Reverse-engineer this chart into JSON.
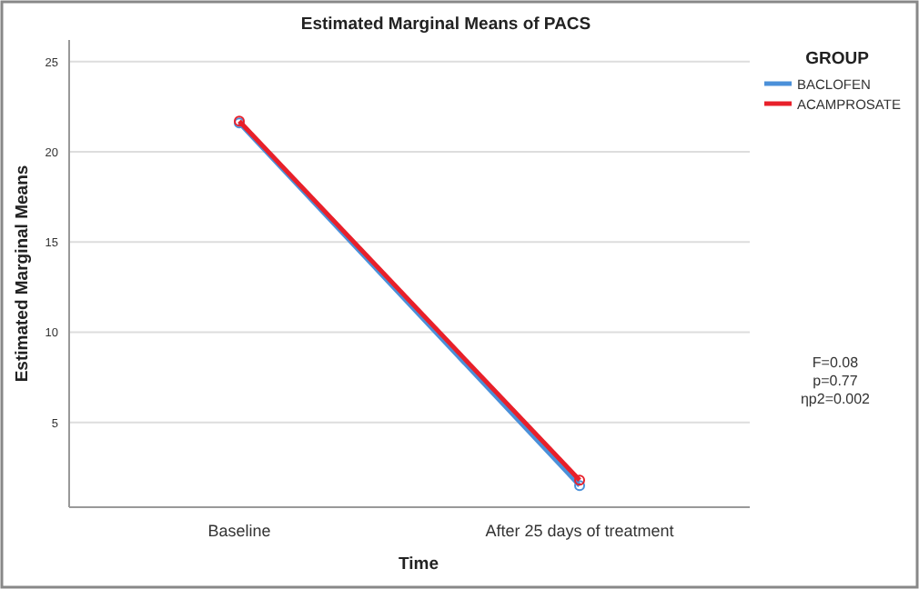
{
  "chart_data": {
    "type": "line",
    "title": "Estimated Marginal Means of PACS",
    "xlabel": "Time",
    "ylabel": "Estimated Marginal Means",
    "legend_title": "GROUP",
    "categories": [
      "Baseline",
      "After 25 days of treatment"
    ],
    "series": [
      {
        "name": "BACLOFEN",
        "color": "#4a90d9",
        "values": [
          21.6,
          1.5
        ]
      },
      {
        "name": "ACAMPROSATE",
        "color": "#e8202a",
        "values": [
          21.7,
          1.8
        ]
      }
    ],
    "ylim": [
      0.3,
      26.2
    ],
    "yticks": [
      5,
      10,
      15,
      20,
      25
    ],
    "grid": "y",
    "legend": "top right",
    "marker": "circle",
    "annotations": [
      "F=0.08",
      "p=0.77",
      "ηp2=0.002"
    ]
  }
}
